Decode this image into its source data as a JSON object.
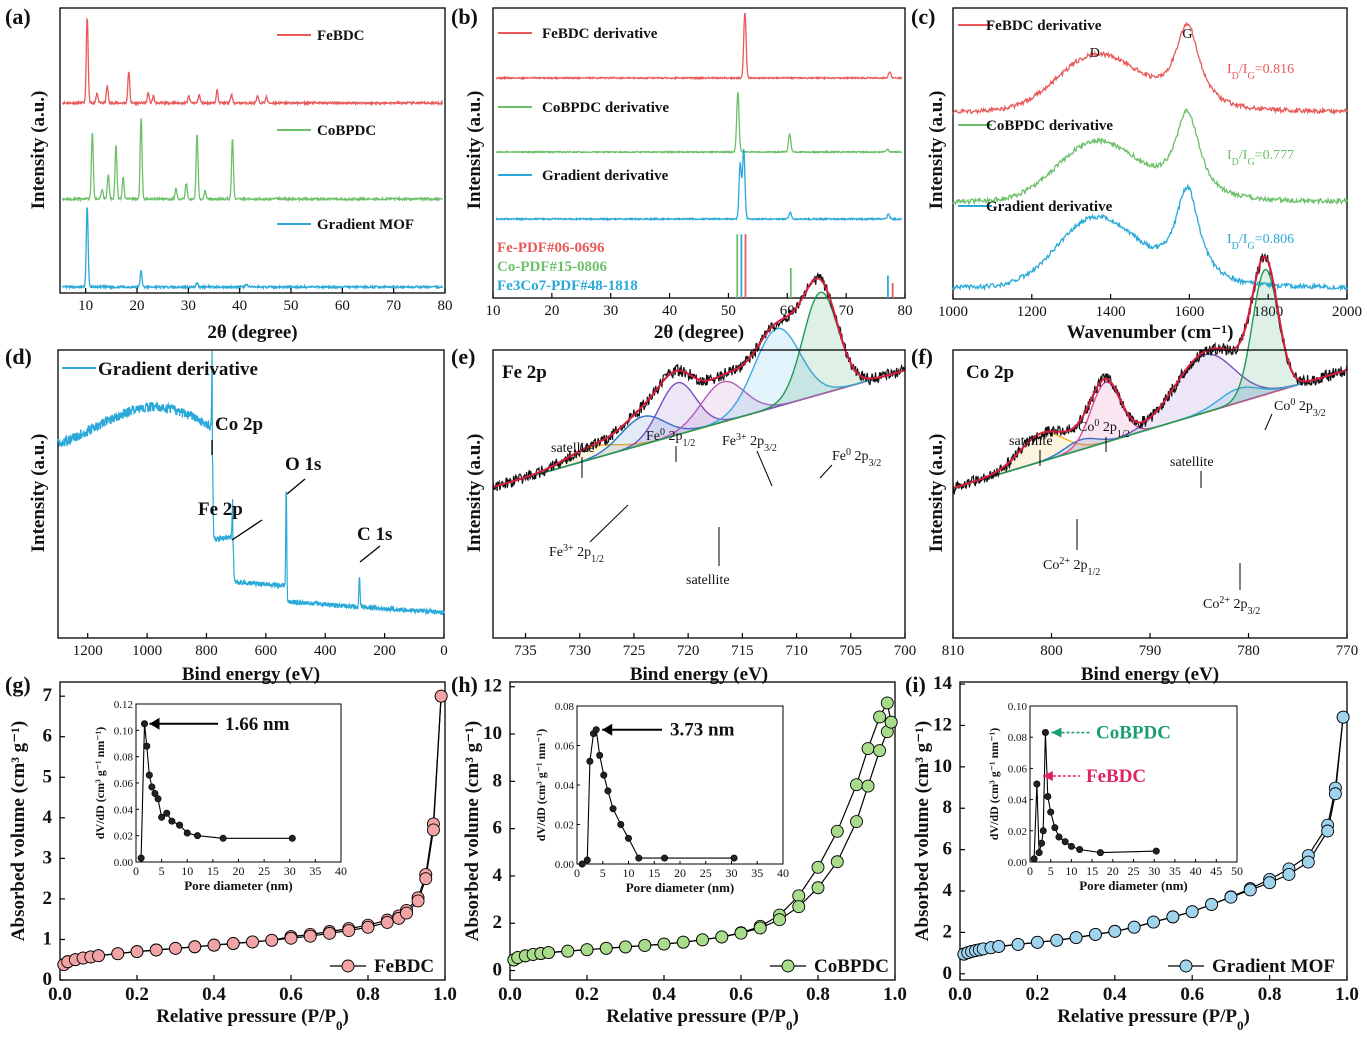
{
  "colors": {
    "fe": "#e8595a",
    "co": "#6cc06a",
    "grad": "#2aa9d9",
    "fit": "#d81c3f",
    "base": "#f2b21b",
    "envelope": "#111111"
  },
  "chart_data": [
    {
      "panel": "(a)",
      "type": "line",
      "xlabel": "2θ (degree)",
      "ylabel": "Intensity (a.u.)",
      "xlim": [
        5,
        80
      ],
      "xticks": [
        10,
        20,
        30,
        40,
        50,
        60,
        70,
        80
      ],
      "series": [
        {
          "name": "FeBDC",
          "color": "#e8595a",
          "peaks": [
            [
              10.3,
              1.0
            ],
            [
              12.2,
              0.12
            ],
            [
              14.2,
              0.2
            ],
            [
              18.4,
              0.37
            ],
            [
              22.2,
              0.12
            ],
            [
              23.2,
              0.08
            ],
            [
              30.1,
              0.08
            ],
            [
              32.1,
              0.1
            ],
            [
              35.6,
              0.15
            ],
            [
              38.4,
              0.1
            ],
            [
              43.5,
              0.08
            ],
            [
              45.2,
              0.07
            ]
          ]
        },
        {
          "name": "CoBPDC",
          "color": "#6cc06a",
          "peaks": [
            [
              11.3,
              0.78
            ],
            [
              13.2,
              0.12
            ],
            [
              14.4,
              0.28
            ],
            [
              15.9,
              0.63
            ],
            [
              17.3,
              0.25
            ],
            [
              20.8,
              0.95
            ],
            [
              27.6,
              0.12
            ],
            [
              29.6,
              0.18
            ],
            [
              31.7,
              0.76
            ],
            [
              33.3,
              0.1
            ],
            [
              38.6,
              0.7
            ]
          ]
        },
        {
          "name": "Gradient MOF",
          "color": "#2aa9d9",
          "peaks": [
            [
              10.3,
              1.0
            ],
            [
              20.8,
              0.2
            ],
            [
              31.7,
              0.06
            ],
            [
              41.3,
              0.04
            ]
          ]
        }
      ]
    },
    {
      "panel": "(b)",
      "type": "line",
      "xlabel": "2θ (degree)",
      "ylabel": "Intensity (a.u.)",
      "xlim": [
        10,
        80
      ],
      "xticks": [
        10,
        20,
        30,
        40,
        50,
        60,
        70,
        80
      ],
      "series": [
        {
          "name": "FeBDC derivative",
          "color": "#e8595a",
          "peaks": [
            [
              52.8,
              1.0
            ],
            [
              77.4,
              0.1
            ]
          ]
        },
        {
          "name": "CoBPDC derivative",
          "color": "#6cc06a",
          "peaks": [
            [
              51.6,
              1.0
            ],
            [
              60.4,
              0.3
            ],
            [
              77.0,
              0.05
            ]
          ]
        },
        {
          "name": "Gradient derivative",
          "color": "#2aa9d9",
          "peaks": [
            [
              52.0,
              0.8
            ],
            [
              52.6,
              1.0
            ],
            [
              60.5,
              0.1
            ],
            [
              77.2,
              0.07
            ]
          ]
        }
      ],
      "references": [
        {
          "name": "Fe-PDF#06-0696",
          "color": "#e8595a",
          "lines": [
            [
              52.9,
              0.85
            ],
            [
              77.9,
              0.2
            ]
          ]
        },
        {
          "name": "Co-PDF#15-0806",
          "color": "#6cc06a",
          "lines": [
            [
              51.5,
              0.85
            ],
            [
              60.6,
              0.4
            ]
          ]
        },
        {
          "name": "Fe3Co7-PDF#48-1818",
          "color": "#2aa9d9",
          "lines": [
            [
              52.2,
              0.85
            ],
            [
              77.1,
              0.3
            ]
          ]
        }
      ]
    },
    {
      "panel": "(c)",
      "type": "line",
      "xlabel": "Wavenumber (cm⁻¹)",
      "ylabel": "Intensity (a.u.)",
      "xlim": [
        1000,
        2000
      ],
      "xticks": [
        1000,
        1200,
        1400,
        1600,
        1800,
        2000
      ],
      "bands": [
        {
          "label": "D",
          "x": 1360
        },
        {
          "label": "G",
          "x": 1595
        }
      ],
      "series": [
        {
          "name": "FeBDC derivative",
          "color": "#e8595a",
          "ratio": "0.816"
        },
        {
          "name": "CoBPDC derivative",
          "color": "#6cc06a",
          "ratio": "0.777"
        },
        {
          "name": "Gradient derivative",
          "color": "#2aa9d9",
          "ratio": "0.806"
        }
      ]
    },
    {
      "panel": "(d)",
      "type": "line",
      "xlabel": "Bind energy (eV)",
      "ylabel": "Intensity (a.u.)",
      "xlim": [
        1300,
        0
      ],
      "xticks": [
        1200,
        1000,
        800,
        600,
        400,
        200,
        0
      ],
      "series": [
        {
          "name": "Gradient derivative",
          "color": "#2aa9d9"
        }
      ],
      "annotations": [
        {
          "label": "Co 2p",
          "x": 780
        },
        {
          "label": "Fe 2p",
          "x": 711
        },
        {
          "label": "O 1s",
          "x": 531
        },
        {
          "label": "C 1s",
          "x": 285
        }
      ]
    },
    {
      "panel": "(e)",
      "type": "line",
      "title": "Fe 2p",
      "xlabel": "Bind energy (eV)",
      "ylabel": "Intensity (a.u.)",
      "xlim": [
        738,
        700
      ],
      "xticks": [
        735,
        730,
        725,
        720,
        715,
        710,
        705,
        700
      ],
      "components": [
        {
          "label": "satellite",
          "center": 729.0,
          "color": "#f2b21b"
        },
        {
          "label": "Fe³⁺ 2p1/2",
          "center": 724.2,
          "color": "#2a75c9"
        },
        {
          "label": "Fe⁰ 2p1/2",
          "center": 721.0,
          "color": "#7b4fbf"
        },
        {
          "label": "satellite",
          "center": 716.8,
          "color": "#b45ab8"
        },
        {
          "label": "Fe³⁺ 2p3/2",
          "center": 711.8,
          "color": "#3aa7e0"
        },
        {
          "label": "Fe⁰ 2p3/2",
          "center": 707.8,
          "color": "#1f9a55"
        }
      ]
    },
    {
      "panel": "(f)",
      "type": "line",
      "title": "Co 2p",
      "xlabel": "Bind energy (eV)",
      "ylabel": "Intensity (a.u.)",
      "xlim": [
        810,
        770
      ],
      "xticks": [
        810,
        800,
        790,
        780,
        770
      ],
      "components": [
        {
          "label": "satellite",
          "center": 801.0,
          "color": "#f2b21b"
        },
        {
          "label": "Co²⁺ 2p1/2",
          "center": 797.0,
          "color": "#2a75c9"
        },
        {
          "label": "Co⁰ 2p1/2",
          "center": 794.5,
          "color": "#d64c9a"
        },
        {
          "label": "satellite",
          "center": 784.5,
          "color": "#7b4fbf"
        },
        {
          "label": "Co²⁺ 2p3/2",
          "center": 781.0,
          "color": "#3aa7e0"
        },
        {
          "label": "Co⁰ 2p3/2",
          "center": 778.3,
          "color": "#1f9a55"
        }
      ]
    },
    {
      "panel": "(g)",
      "type": "scatter",
      "xlabel": "Relative pressure (P/P0)",
      "ylabel": "Absorbed volume (cm³ g⁻¹)",
      "xlim": [
        0,
        1.0
      ],
      "ylim": [
        0,
        7
      ],
      "yticks": [
        0,
        1,
        2,
        3,
        4,
        5,
        6,
        7
      ],
      "series": [
        {
          "name": "FeBDC",
          "color": "#f2a3a3",
          "x": [
            0.01,
            0.02,
            0.04,
            0.06,
            0.08,
            0.1,
            0.15,
            0.2,
            0.25,
            0.3,
            0.35,
            0.4,
            0.45,
            0.5,
            0.55,
            0.6,
            0.65,
            0.7,
            0.75,
            0.8,
            0.85,
            0.88,
            0.9,
            0.93,
            0.95,
            0.97,
            0.99
          ],
          "y": [
            0.38,
            0.45,
            0.5,
            0.54,
            0.57,
            0.6,
            0.65,
            0.7,
            0.74,
            0.78,
            0.82,
            0.86,
            0.9,
            0.94,
            0.98,
            1.03,
            1.08,
            1.15,
            1.22,
            1.3,
            1.42,
            1.52,
            1.65,
            1.95,
            2.5,
            3.7,
            7.0
          ]
        }
      ],
      "inset": {
        "xlabel": "Pore diameter (nm)",
        "ylabel": "dV/dD (cm³ g⁻¹ nm⁻¹)",
        "xlim": [
          0,
          40
        ],
        "ylim": [
          0,
          0.12
        ],
        "annotation": "1.66 nm",
        "x": [
          1.0,
          1.66,
          2.1,
          2.6,
          3.1,
          3.7,
          4.3,
          5.0,
          6.0,
          7.0,
          8.5,
          10,
          12,
          17,
          30.5
        ],
        "y": [
          0.003,
          0.105,
          0.088,
          0.066,
          0.057,
          0.052,
          0.048,
          0.034,
          0.037,
          0.031,
          0.028,
          0.022,
          0.02,
          0.018,
          0.018
        ]
      }
    },
    {
      "panel": "(h)",
      "type": "scatter",
      "xlabel": "Relative pressure (P/P0)",
      "ylabel": "Absorbed volume (cm³ g⁻¹)",
      "xlim": [
        0,
        1.0
      ],
      "ylim": [
        0,
        12
      ],
      "yticks": [
        0,
        2,
        4,
        6,
        8,
        10,
        12
      ],
      "series": [
        {
          "name": "CoBPDC",
          "color": "#a8dc8a",
          "x": [
            0.01,
            0.02,
            0.04,
            0.06,
            0.08,
            0.1,
            0.15,
            0.2,
            0.25,
            0.3,
            0.35,
            0.4,
            0.45,
            0.5,
            0.55,
            0.6,
            0.65,
            0.7,
            0.75,
            0.8,
            0.85,
            0.9,
            0.93,
            0.96,
            0.98,
            0.99
          ],
          "y": [
            0.45,
            0.55,
            0.62,
            0.68,
            0.72,
            0.76,
            0.82,
            0.88,
            0.94,
            1.0,
            1.06,
            1.12,
            1.2,
            1.3,
            1.42,
            1.58,
            1.8,
            2.15,
            2.7,
            3.5,
            4.6,
            6.3,
            7.8,
            9.3,
            10.1,
            10.5
          ]
        }
      ],
      "inset": {
        "xlabel": "Pore diameter (nm)",
        "ylabel": "dV/dD (cm³ g⁻¹ nm⁻¹)",
        "xlim": [
          0,
          40
        ],
        "ylim": [
          0,
          0.08
        ],
        "annotation": "3.73 nm",
        "x": [
          1.0,
          2.0,
          2.5,
          3.2,
          3.73,
          4.4,
          5.2,
          6.0,
          7.0,
          8.5,
          10,
          12,
          17,
          30.5
        ],
        "y": [
          0.0,
          0.002,
          0.052,
          0.066,
          0.068,
          0.055,
          0.045,
          0.037,
          0.028,
          0.02,
          0.013,
          0.003,
          0.003,
          0.003
        ]
      }
    },
    {
      "panel": "(i)",
      "type": "scatter",
      "xlabel": "Relative pressure (P/P0)",
      "ylabel": "Absorbed volume (cm³ g⁻¹)",
      "xlim": [
        0,
        1.0
      ],
      "ylim": [
        0,
        14
      ],
      "yticks": [
        0,
        2,
        4,
        6,
        8,
        10,
        12,
        14
      ],
      "series": [
        {
          "name": "Gradient MOF",
          "color": "#9fd3ee",
          "x": [
            0.01,
            0.02,
            0.03,
            0.04,
            0.05,
            0.06,
            0.08,
            0.1,
            0.15,
            0.2,
            0.25,
            0.3,
            0.35,
            0.4,
            0.45,
            0.5,
            0.55,
            0.6,
            0.65,
            0.7,
            0.75,
            0.8,
            0.85,
            0.9,
            0.95,
            0.97,
            0.99
          ],
          "y": [
            0.95,
            1.02,
            1.08,
            1.12,
            1.16,
            1.2,
            1.26,
            1.32,
            1.42,
            1.52,
            1.62,
            1.75,
            1.9,
            2.05,
            2.25,
            2.5,
            2.75,
            3.0,
            3.35,
            3.7,
            4.05,
            4.4,
            4.8,
            5.4,
            6.9,
            8.7,
            12.4
          ]
        }
      ],
      "inset": {
        "xlabel": "Pore diameter (nm)",
        "ylabel": "dV/dD (cm³ g⁻¹ nm⁻¹)",
        "xlim": [
          0,
          50
        ],
        "ylim": [
          0,
          0.1
        ],
        "annotations": [
          "CoBPDC",
          "FeBDC"
        ],
        "x": [
          1.0,
          1.66,
          2.2,
          2.8,
          3.2,
          3.73,
          4.3,
          5.0,
          6.0,
          7.0,
          8.5,
          10,
          12,
          17,
          30.5
        ],
        "y": [
          0.002,
          0.05,
          0.006,
          0.012,
          0.02,
          0.083,
          0.042,
          0.032,
          0.022,
          0.016,
          0.013,
          0.01,
          0.008,
          0.006,
          0.007
        ]
      }
    }
  ]
}
